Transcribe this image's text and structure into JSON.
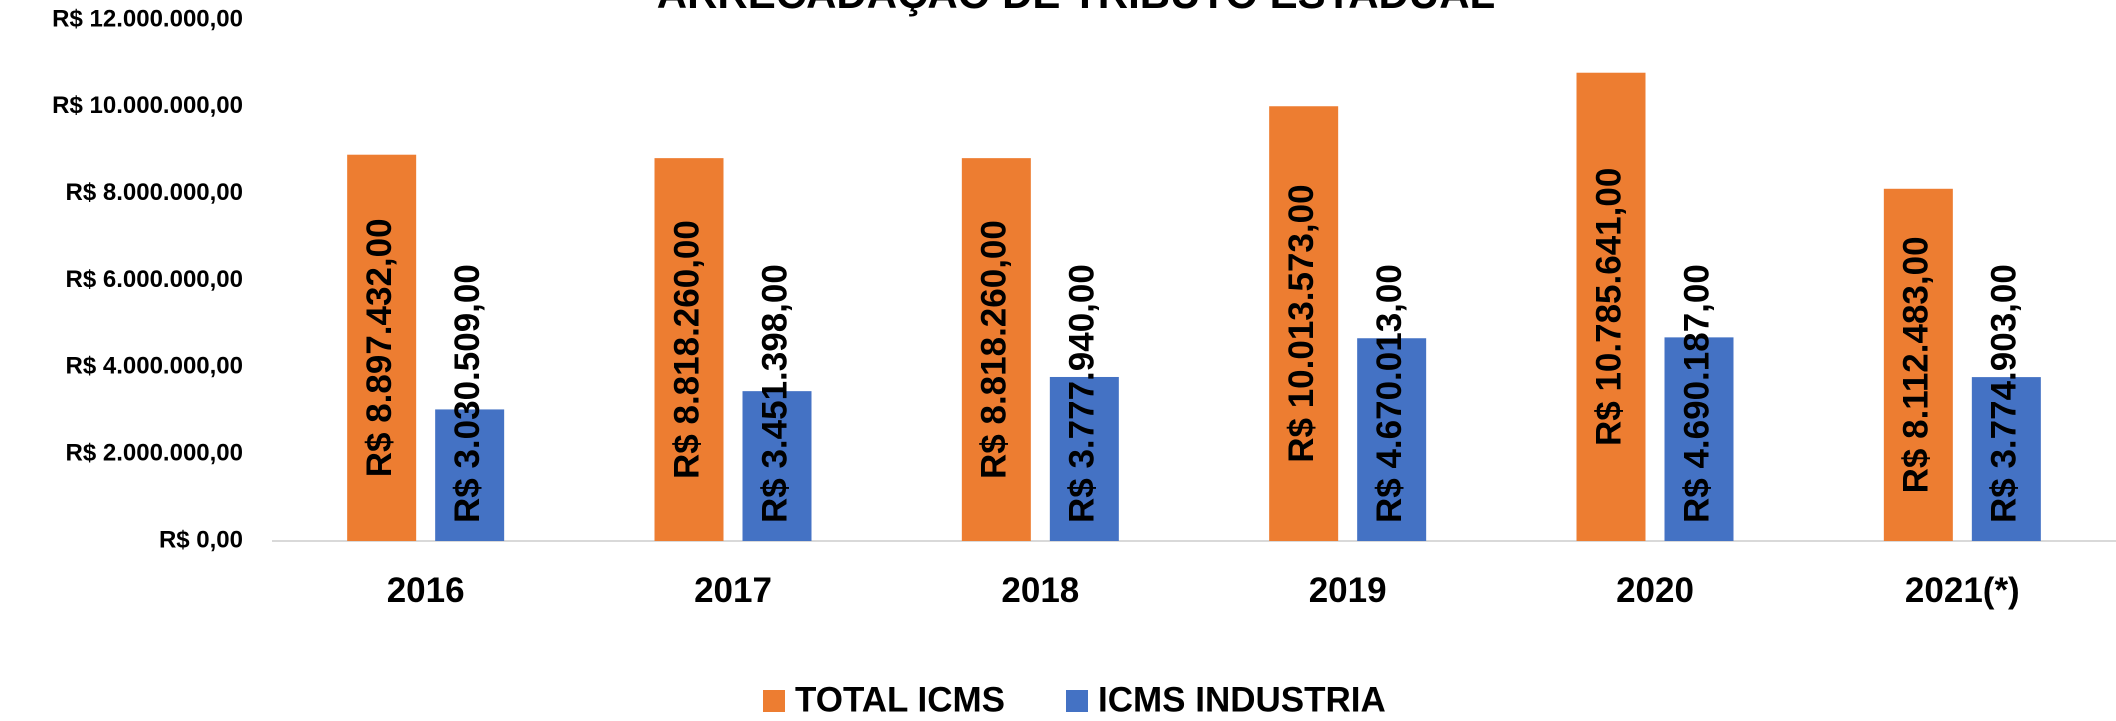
{
  "chart_data": {
    "type": "bar",
    "title": "ARRECADAÇÃO DE TRIBUTO ESTADUAL",
    "categories": [
      "2016",
      "2017",
      "2018",
      "2019",
      "2020",
      "2021(*)"
    ],
    "series": [
      {
        "name": "TOTAL ICMS",
        "color": "#ED7D31",
        "values": [
          8897432,
          8818260,
          8818260,
          10013573,
          10785641,
          8112483
        ],
        "value_labels": [
          "R$ 8.897.432,00",
          "R$ 8.818.260,00",
          "R$ 8.818.260,00",
          "R$ 10.013.573,00",
          "R$ 10.785.641,00",
          "R$ 8.112.483,00"
        ]
      },
      {
        "name": "ICMS INDUSTRIA",
        "color": "#4472C4",
        "values": [
          3030509,
          3451398,
          3777940,
          4670013,
          4690187,
          3774903
        ],
        "value_labels": [
          "R$ 3.030.509,00",
          "R$ 3.451.398,00",
          "R$ 3.777.940,00",
          "R$ 4.670.013,00",
          "R$ 4.690.187,00",
          "R$ 3.774.903,00"
        ]
      }
    ],
    "ylim": [
      0,
      12000000
    ],
    "yticks": [
      {
        "value": 0,
        "label": "R$ 0,00"
      },
      {
        "value": 2000000,
        "label": "R$ 2.000.000,00"
      },
      {
        "value": 4000000,
        "label": "R$ 4.000.000,00"
      },
      {
        "value": 6000000,
        "label": "R$ 6.000.000,00"
      },
      {
        "value": 8000000,
        "label": "R$ 8.000.000,00"
      },
      {
        "value": 10000000,
        "label": "R$ 10.000.000,00"
      },
      {
        "value": 12000000,
        "label": "R$ 12.000.000,00"
      }
    ],
    "grid": false,
    "legend": "bottom"
  }
}
